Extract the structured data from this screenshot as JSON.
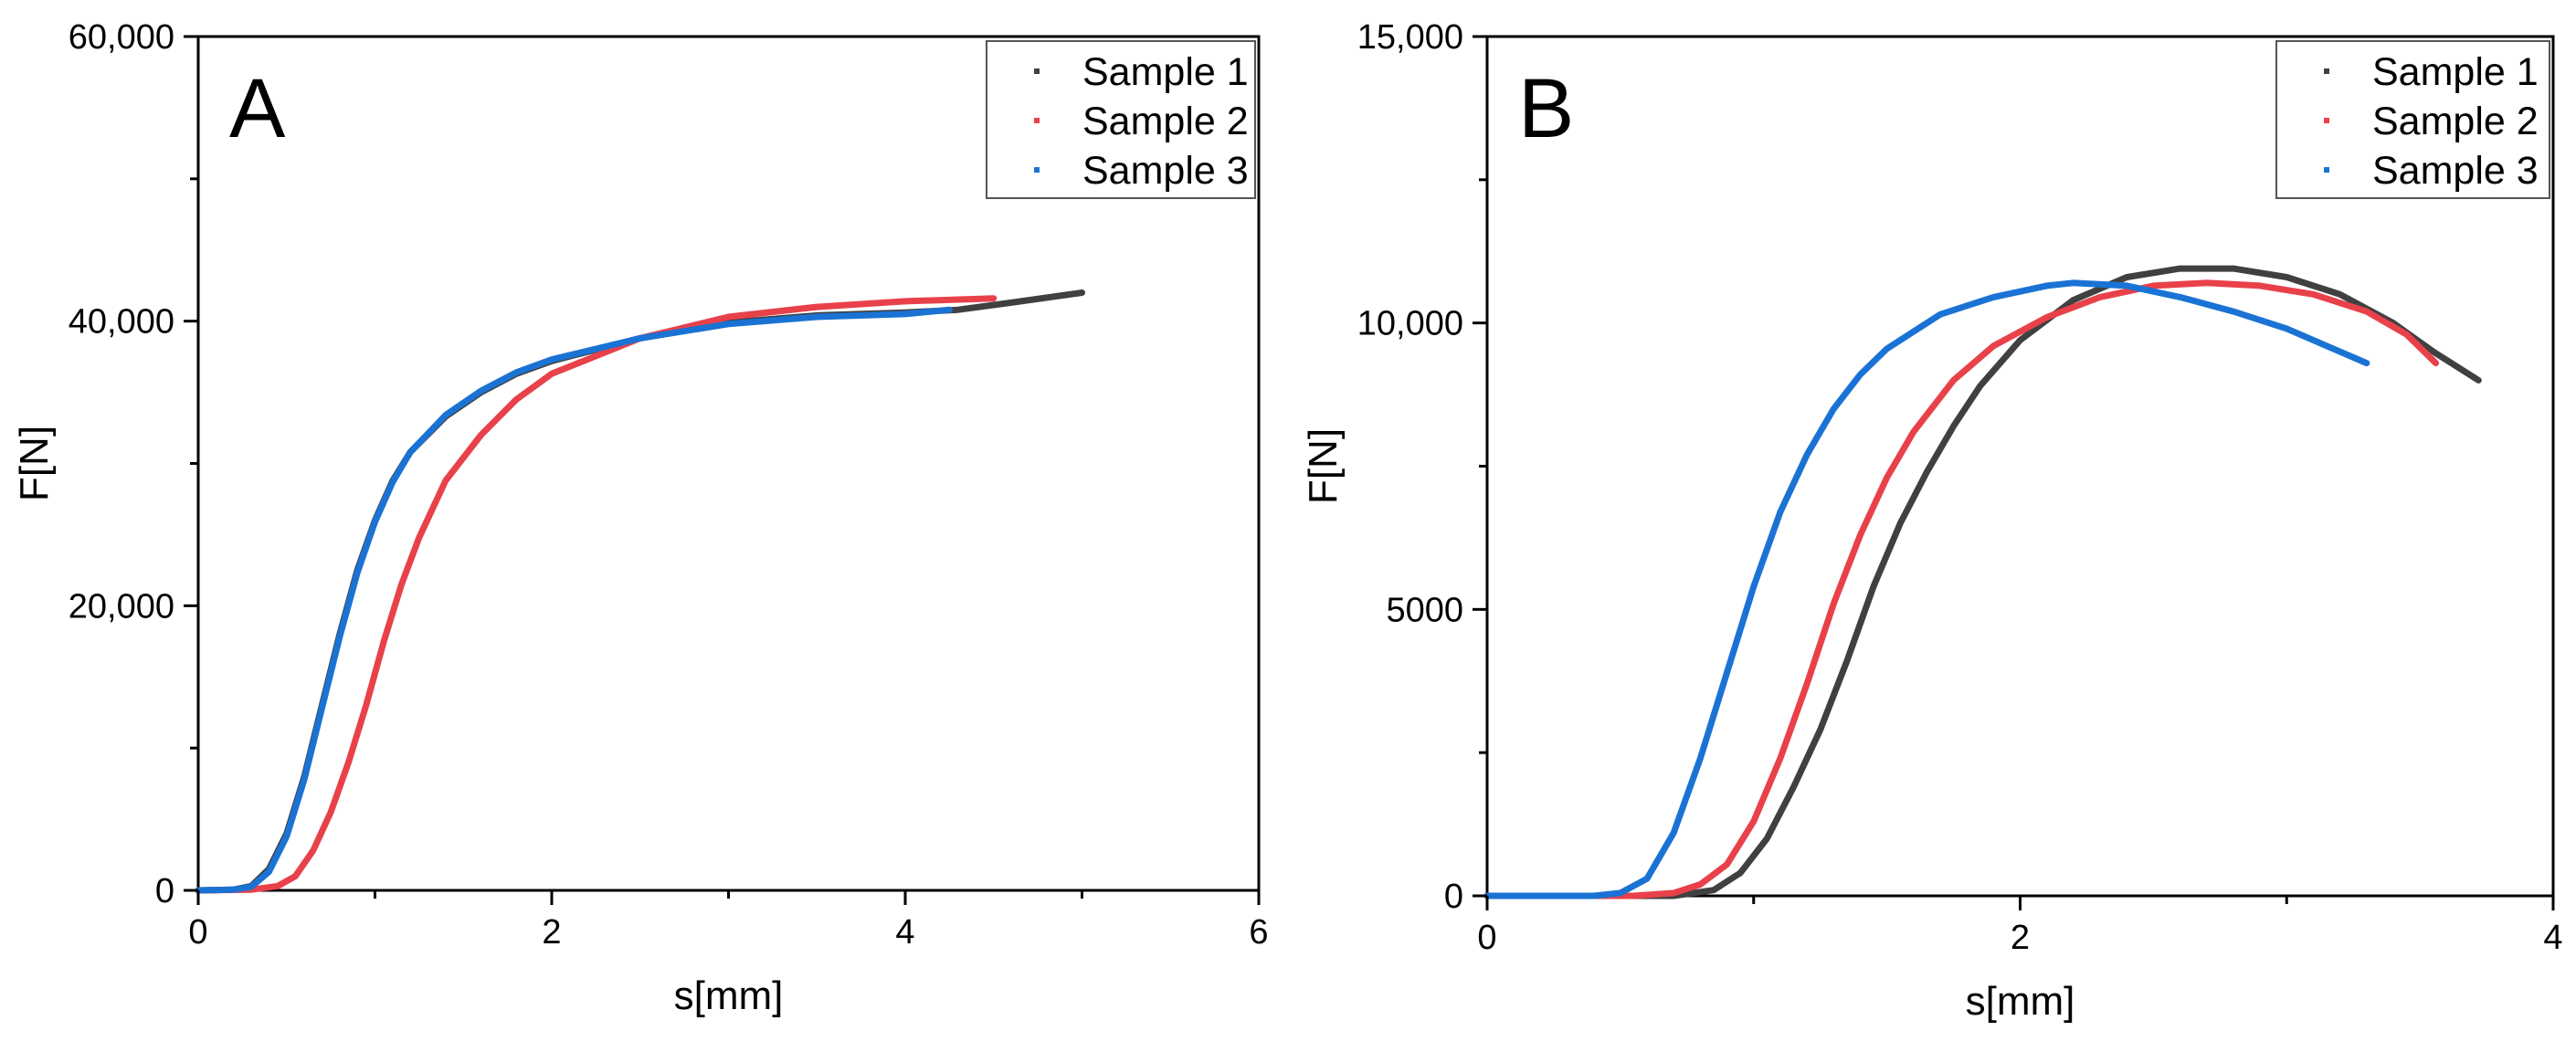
{
  "chart_data": [
    {
      "type": "line",
      "panel_label": "A",
      "xlabel": "s[mm]",
      "ylabel": "F[N]",
      "xlim": [
        0,
        6
      ],
      "ylim": [
        0,
        60000
      ],
      "x_ticks": [
        0,
        2,
        4,
        6
      ],
      "x_tick_labels": [
        "0",
        "2",
        "4",
        "6"
      ],
      "y_ticks": [
        0,
        20000,
        40000,
        60000
      ],
      "y_tick_labels": [
        "0",
        "20,000",
        "40,000",
        "60,000"
      ],
      "legend_position": "top-right",
      "grid": false,
      "series": [
        {
          "name": "Sample 1",
          "color": "#404040",
          "points": [
            [
              0,
              0
            ],
            [
              0.2,
              50
            ],
            [
              0.3,
              300
            ],
            [
              0.4,
              1500
            ],
            [
              0.5,
              4000
            ],
            [
              0.6,
              8000
            ],
            [
              0.7,
              13000
            ],
            [
              0.8,
              18000
            ],
            [
              0.9,
              22500
            ],
            [
              1.0,
              26000
            ],
            [
              1.1,
              28800
            ],
            [
              1.2,
              30800
            ],
            [
              1.4,
              33300
            ],
            [
              1.6,
              35000
            ],
            [
              1.8,
              36300
            ],
            [
              2.0,
              37200
            ],
            [
              2.5,
              38800
            ],
            [
              3.0,
              39900
            ],
            [
              3.5,
              40400
            ],
            [
              4.0,
              40600
            ],
            [
              4.3,
              40800
            ],
            [
              4.6,
              41300
            ],
            [
              5.0,
              42000
            ]
          ]
        },
        {
          "name": "Sample 2",
          "color": "#e8414a",
          "points": [
            [
              0,
              0
            ],
            [
              0.3,
              50
            ],
            [
              0.45,
              300
            ],
            [
              0.55,
              1000
            ],
            [
              0.65,
              2800
            ],
            [
              0.75,
              5500
            ],
            [
              0.85,
              9000
            ],
            [
              0.95,
              13000
            ],
            [
              1.05,
              17500
            ],
            [
              1.15,
              21500
            ],
            [
              1.25,
              24800
            ],
            [
              1.4,
              28800
            ],
            [
              1.6,
              32000
            ],
            [
              1.8,
              34500
            ],
            [
              2.0,
              36300
            ],
            [
              2.5,
              38800
            ],
            [
              3.0,
              40300
            ],
            [
              3.5,
              41000
            ],
            [
              4.0,
              41400
            ],
            [
              4.5,
              41600
            ]
          ]
        },
        {
          "name": "Sample 3",
          "color": "#1a73d4",
          "points": [
            [
              0,
              0
            ],
            [
              0.2,
              50
            ],
            [
              0.3,
              250
            ],
            [
              0.4,
              1300
            ],
            [
              0.5,
              3800
            ],
            [
              0.6,
              7800
            ],
            [
              0.7,
              12800
            ],
            [
              0.8,
              17800
            ],
            [
              0.9,
              22300
            ],
            [
              1.0,
              25900
            ],
            [
              1.1,
              28700
            ],
            [
              1.2,
              30800
            ],
            [
              1.4,
              33400
            ],
            [
              1.6,
              35100
            ],
            [
              1.8,
              36400
            ],
            [
              2.0,
              37300
            ],
            [
              2.5,
              38800
            ],
            [
              3.0,
              39800
            ],
            [
              3.5,
              40300
            ],
            [
              4.0,
              40500
            ],
            [
              4.25,
              40800
            ]
          ]
        }
      ]
    },
    {
      "type": "line",
      "panel_label": "B",
      "xlabel": "s[mm]",
      "ylabel": "F[N]",
      "xlim": [
        0,
        4
      ],
      "ylim": [
        0,
        15000
      ],
      "x_ticks": [
        0,
        2,
        4
      ],
      "x_tick_labels": [
        "0",
        "2",
        "4"
      ],
      "y_ticks": [
        0,
        5000,
        10000,
        15000
      ],
      "y_tick_labels": [
        "0",
        "5000",
        "10,000",
        "15,000"
      ],
      "legend_position": "top-right",
      "grid": false,
      "series": [
        {
          "name": "Sample 1",
          "color": "#404040",
          "points": [
            [
              0,
              0
            ],
            [
              0.7,
              0
            ],
            [
              0.85,
              100
            ],
            [
              0.95,
              400
            ],
            [
              1.05,
              1000
            ],
            [
              1.15,
              1900
            ],
            [
              1.25,
              2900
            ],
            [
              1.35,
              4100
            ],
            [
              1.45,
              5400
            ],
            [
              1.55,
              6500
            ],
            [
              1.65,
              7400
            ],
            [
              1.75,
              8200
            ],
            [
              1.85,
              8900
            ],
            [
              2.0,
              9700
            ],
            [
              2.2,
              10400
            ],
            [
              2.4,
              10800
            ],
            [
              2.6,
              10950
            ],
            [
              2.8,
              10950
            ],
            [
              3.0,
              10800
            ],
            [
              3.2,
              10500
            ],
            [
              3.4,
              10000
            ],
            [
              3.55,
              9500
            ],
            [
              3.72,
              9000
            ]
          ]
        },
        {
          "name": "Sample 2",
          "color": "#e8414a",
          "points": [
            [
              0,
              0
            ],
            [
              0.55,
              0
            ],
            [
              0.7,
              50
            ],
            [
              0.8,
              200
            ],
            [
              0.9,
              550
            ],
            [
              1.0,
              1300
            ],
            [
              1.1,
              2400
            ],
            [
              1.2,
              3700
            ],
            [
              1.3,
              5100
            ],
            [
              1.4,
              6300
            ],
            [
              1.5,
              7300
            ],
            [
              1.6,
              8100
            ],
            [
              1.75,
              9000
            ],
            [
              1.9,
              9600
            ],
            [
              2.1,
              10100
            ],
            [
              2.3,
              10450
            ],
            [
              2.5,
              10650
            ],
            [
              2.7,
              10700
            ],
            [
              2.9,
              10650
            ],
            [
              3.1,
              10500
            ],
            [
              3.3,
              10200
            ],
            [
              3.45,
              9800
            ],
            [
              3.56,
              9300
            ]
          ]
        },
        {
          "name": "Sample 3",
          "color": "#1a73d4",
          "points": [
            [
              0,
              0
            ],
            [
              0.4,
              0
            ],
            [
              0.5,
              50
            ],
            [
              0.6,
              300
            ],
            [
              0.7,
              1100
            ],
            [
              0.8,
              2400
            ],
            [
              0.9,
              3900
            ],
            [
              1.0,
              5400
            ],
            [
              1.1,
              6700
            ],
            [
              1.2,
              7700
            ],
            [
              1.3,
              8500
            ],
            [
              1.4,
              9100
            ],
            [
              1.5,
              9550
            ],
            [
              1.7,
              10150
            ],
            [
              1.9,
              10450
            ],
            [
              2.1,
              10650
            ],
            [
              2.2,
              10700
            ],
            [
              2.4,
              10650
            ],
            [
              2.6,
              10450
            ],
            [
              2.8,
              10200
            ],
            [
              3.0,
              9900
            ],
            [
              3.15,
              9600
            ],
            [
              3.3,
              9300
            ]
          ]
        }
      ]
    }
  ]
}
